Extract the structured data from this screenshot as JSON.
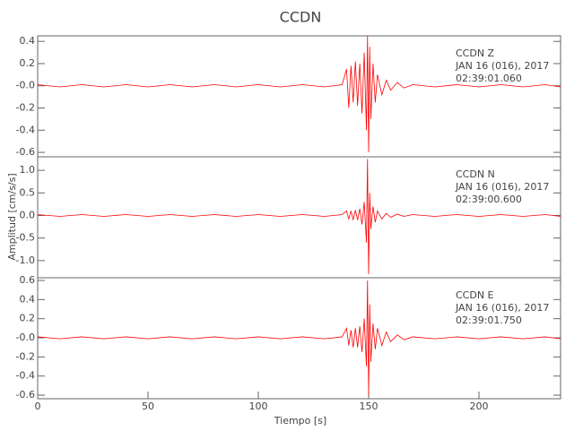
{
  "chart_data": [
    {
      "type": "line",
      "title": "CCDN",
      "annotations": [
        "CCDN   Z",
        "JAN 16 (016), 2017",
        "02:39:01.060"
      ],
      "x": [
        0,
        10,
        20,
        30,
        40,
        50,
        60,
        70,
        80,
        90,
        100,
        110,
        120,
        130,
        138,
        140,
        141,
        142,
        143,
        144,
        145,
        146,
        147,
        148,
        149,
        149.5,
        150,
        150.5,
        151,
        152,
        153,
        154,
        156,
        158,
        160,
        163,
        166,
        170,
        180,
        190,
        200,
        210,
        220,
        230,
        237
      ],
      "values": [
        0.01,
        -0.01,
        0.01,
        -0.01,
        0.01,
        -0.01,
        0.01,
        -0.01,
        0.01,
        -0.01,
        0.01,
        -0.01,
        0.01,
        -0.01,
        0.01,
        0.15,
        -0.2,
        0.18,
        -0.15,
        0.22,
        -0.18,
        0.2,
        -0.25,
        0.3,
        -0.4,
        0.45,
        -0.6,
        0.35,
        -0.3,
        0.2,
        -0.15,
        0.1,
        -0.08,
        0.05,
        -0.04,
        0.03,
        -0.02,
        0.01,
        -0.01,
        0.01,
        -0.01,
        0.01,
        -0.01,
        0.01,
        -0.01
      ],
      "color": "#ff0000",
      "xlim": [
        0,
        237
      ],
      "ylim": [
        -0.64,
        0.45
      ],
      "yticks": [
        -0.6,
        -0.4,
        -0.2,
        {
          "value": 0,
          "label": "-0.0"
        },
        0.2,
        0.4
      ]
    },
    {
      "type": "line",
      "y_label": "Amplitud [cm/s/s]",
      "annotations": [
        "CCDN   N",
        "JAN 16 (016), 2017",
        "02:39:00.600"
      ],
      "x": [
        0,
        10,
        20,
        30,
        40,
        50,
        60,
        70,
        80,
        90,
        100,
        110,
        120,
        130,
        138,
        140,
        141,
        142,
        143,
        144,
        145,
        146,
        147,
        148,
        149,
        149.5,
        150,
        150.5,
        151,
        152,
        153,
        154,
        156,
        158,
        160,
        163,
        166,
        170,
        180,
        190,
        200,
        210,
        220,
        230,
        237
      ],
      "values": [
        0.02,
        -0.02,
        0.02,
        -0.02,
        0.02,
        -0.02,
        0.02,
        -0.02,
        0.02,
        -0.02,
        0.02,
        -0.02,
        0.02,
        -0.02,
        0.02,
        0.1,
        -0.08,
        0.1,
        -0.1,
        0.12,
        -0.1,
        0.15,
        -0.2,
        0.3,
        -0.6,
        1.25,
        -1.3,
        0.5,
        -0.3,
        0.2,
        -0.15,
        0.1,
        -0.08,
        0.05,
        -0.04,
        0.03,
        -0.02,
        0.02,
        -0.02,
        0.02,
        -0.02,
        0.02,
        -0.02,
        0.02,
        -0.02
      ],
      "color": "#ff0000",
      "xlim": [
        0,
        237
      ],
      "ylim": [
        -1.38,
        1.3
      ],
      "yticks": [
        {
          "value": -1,
          "label": "-1.0"
        },
        -0.5,
        {
          "value": 0,
          "label": "0.0"
        },
        0.5,
        {
          "value": 1,
          "label": "1.0"
        }
      ]
    },
    {
      "type": "line",
      "x_label": "Tiempo [s]",
      "annotations": [
        "CCDN   E",
        "JAN 16 (016), 2017",
        "02:39:01.750"
      ],
      "x": [
        0,
        10,
        20,
        30,
        40,
        50,
        60,
        70,
        80,
        90,
        100,
        110,
        120,
        130,
        138,
        140,
        141,
        142,
        143,
        144,
        145,
        146,
        147,
        148,
        149,
        149.5,
        150,
        150.5,
        151,
        152,
        153,
        154,
        156,
        158,
        160,
        163,
        166,
        170,
        180,
        190,
        200,
        210,
        220,
        230,
        237
      ],
      "values": [
        0.01,
        -0.01,
        0.01,
        -0.01,
        0.01,
        -0.01,
        0.01,
        -0.01,
        0.01,
        -0.01,
        0.01,
        -0.01,
        0.01,
        -0.01,
        0.01,
        0.1,
        -0.08,
        0.08,
        -0.1,
        0.1,
        -0.1,
        0.12,
        -0.15,
        0.2,
        -0.3,
        0.6,
        -0.6,
        0.35,
        -0.25,
        0.15,
        -0.12,
        0.1,
        -0.08,
        0.06,
        -0.04,
        0.03,
        -0.02,
        0.01,
        -0.01,
        0.01,
        -0.01,
        0.01,
        -0.01,
        0.01,
        -0.01
      ],
      "color": "#ff0000",
      "xlim": [
        0,
        237
      ],
      "ylim": [
        -0.637,
        0.628
      ],
      "yticks": [
        -0.6,
        -0.4,
        -0.2,
        {
          "value": 0,
          "label": "-0.0"
        },
        0.2,
        0.4,
        0.6
      ],
      "xticks": [
        0,
        50,
        100,
        150,
        200
      ]
    }
  ]
}
